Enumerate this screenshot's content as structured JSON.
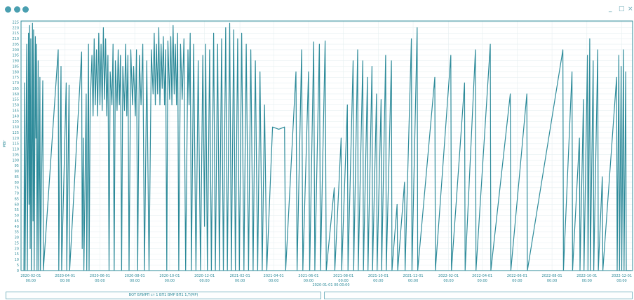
{
  "window": {
    "icons": [
      "shield-icon",
      "gear-icon",
      "gear-icon"
    ],
    "controls": [
      "_",
      "□",
      "×"
    ]
  },
  "status": {
    "left_text": "ВОТ ВЛИРП ст 1 ВП1 ВМР ВП1 1,Т(МР)",
    "right_text": ""
  },
  "chart_data": {
    "type": "line",
    "title": "",
    "xlabel": "2020-01-01 00:00:00",
    "ylabel": "МВт",
    "ylim": [
      0,
      226
    ],
    "xlim": [
      "2020-01-15",
      "2022-12-20"
    ],
    "grid": true,
    "color": "#2e8b9a",
    "x_ticks": [
      {
        "date": "2020-02-01",
        "label": "2020-02-01",
        "sub": "00:00"
      },
      {
        "date": "2020-04-01",
        "label": "2020-04-01",
        "sub": "00:00"
      },
      {
        "date": "2020-06-01",
        "label": "2020-06-01",
        "sub": "00:00"
      },
      {
        "date": "2020-08-01",
        "label": "2020-08-01",
        "sub": "00:00"
      },
      {
        "date": "2020-10-01",
        "label": "2020-10-01",
        "sub": "00:00"
      },
      {
        "date": "2020-12-01",
        "label": "2020-12-01",
        "sub": "00:00"
      },
      {
        "date": "2021-02-01",
        "label": "2021-02-01",
        "sub": "00:00"
      },
      {
        "date": "2021-04-01",
        "label": "2021-04-01",
        "sub": "00:00"
      },
      {
        "date": "2021-06-01",
        "label": "2021-06-01",
        "sub": "00:00"
      },
      {
        "date": "2021-08-01",
        "label": "2021-08-01",
        "sub": "00:00"
      },
      {
        "date": "2021-10-01",
        "label": "2021-10-01",
        "sub": "00:00"
      },
      {
        "date": "2021-12-01",
        "label": "2021-12-01",
        "sub": "00:00"
      },
      {
        "date": "2022-02-01",
        "label": "2022-02-01",
        "sub": "00:00"
      },
      {
        "date": "2022-04-01",
        "label": "2022-04-01",
        "sub": "00:00"
      },
      {
        "date": "2022-06-01",
        "label": "2022-06-01",
        "sub": "00:00"
      },
      {
        "date": "2022-08-01",
        "label": "2022-08-01",
        "sub": "00:00"
      },
      {
        "date": "2022-10-01",
        "label": "2022-10-01",
        "sub": "00:00"
      },
      {
        "date": "2022-12-01",
        "label": "2022-12-01",
        "sub": "00:00"
      }
    ],
    "y_ticks": [
      0,
      5,
      10,
      15,
      20,
      25,
      30,
      35,
      40,
      45,
      50,
      55,
      60,
      65,
      70,
      75,
      80,
      85,
      90,
      95,
      100,
      105,
      110,
      115,
      120,
      125,
      130,
      135,
      140,
      145,
      150,
      155,
      160,
      165,
      170,
      175,
      180,
      185,
      190,
      195,
      200,
      205,
      210,
      215,
      220,
      225
    ],
    "series": [
      {
        "values": [
          [
            "2020-01-20",
            0
          ],
          [
            "2020-01-21",
            170
          ],
          [
            "2020-01-22",
            0
          ],
          [
            "2020-01-25",
            205
          ],
          [
            "2020-01-26",
            0
          ],
          [
            "2020-01-28",
            215
          ],
          [
            "2020-01-29",
            60
          ],
          [
            "2020-01-30",
            222
          ],
          [
            "2020-01-31",
            20
          ],
          [
            "2020-02-01",
            210
          ],
          [
            "2020-02-02",
            0
          ],
          [
            "2020-02-04",
            224
          ],
          [
            "2020-02-05",
            45
          ],
          [
            "2020-02-06",
            218
          ],
          [
            "2020-02-07",
            0
          ],
          [
            "2020-02-09",
            212
          ],
          [
            "2020-02-10",
            120
          ],
          [
            "2020-02-11",
            205
          ],
          [
            "2020-02-12",
            0
          ],
          [
            "2020-02-14",
            190
          ],
          [
            "2020-02-15",
            0
          ],
          [
            "2020-02-17",
            175
          ],
          [
            "2020-02-18",
            0
          ],
          [
            "2020-02-22",
            172
          ],
          [
            "2020-02-23",
            0
          ],
          [
            "2020-03-20",
            200
          ],
          [
            "2020-03-21",
            0
          ],
          [
            "2020-03-25",
            185
          ],
          [
            "2020-03-26",
            0
          ],
          [
            "2020-04-03",
            170
          ],
          [
            "2020-04-04",
            0
          ],
          [
            "2020-04-08",
            168
          ],
          [
            "2020-04-09",
            0
          ],
          [
            "2020-04-30",
            198
          ],
          [
            "2020-05-01",
            20
          ],
          [
            "2020-05-03",
            120
          ],
          [
            "2020-05-04",
            0
          ],
          [
            "2020-05-08",
            160
          ],
          [
            "2020-05-09",
            0
          ],
          [
            "2020-05-12",
            205
          ],
          [
            "2020-05-13",
            0
          ],
          [
            "2020-05-15",
            150
          ],
          [
            "2020-05-18",
            195
          ],
          [
            "2020-05-20",
            140
          ],
          [
            "2020-05-22",
            210
          ],
          [
            "2020-05-24",
            150
          ],
          [
            "2020-05-26",
            200
          ],
          [
            "2020-05-28",
            140
          ],
          [
            "2020-05-30",
            215
          ],
          [
            "2020-06-01",
            150
          ],
          [
            "2020-06-03",
            205
          ],
          [
            "2020-06-05",
            145
          ],
          [
            "2020-06-07",
            220
          ],
          [
            "2020-06-09",
            155
          ],
          [
            "2020-06-11",
            210
          ],
          [
            "2020-06-13",
            140
          ],
          [
            "2020-06-15",
            195
          ],
          [
            "2020-06-17",
            0
          ],
          [
            "2020-06-19",
            180
          ],
          [
            "2020-06-22",
            150
          ],
          [
            "2020-06-24",
            205
          ],
          [
            "2020-06-26",
            0
          ],
          [
            "2020-06-28",
            190
          ],
          [
            "2020-07-01",
            145
          ],
          [
            "2020-07-03",
            200
          ],
          [
            "2020-07-05",
            150
          ],
          [
            "2020-07-07",
            195
          ],
          [
            "2020-07-09",
            0
          ],
          [
            "2020-07-11",
            185
          ],
          [
            "2020-07-14",
            145
          ],
          [
            "2020-07-16",
            205
          ],
          [
            "2020-07-18",
            140
          ],
          [
            "2020-07-20",
            195
          ],
          [
            "2020-07-22",
            0
          ],
          [
            "2020-07-25",
            200
          ],
          [
            "2020-07-28",
            150
          ],
          [
            "2020-07-30",
            185
          ],
          [
            "2020-08-02",
            140
          ],
          [
            "2020-08-04",
            200
          ],
          [
            "2020-08-06",
            0
          ],
          [
            "2020-08-09",
            195
          ],
          [
            "2020-08-12",
            150
          ],
          [
            "2020-08-15",
            205
          ],
          [
            "2020-08-18",
            0
          ],
          [
            "2020-08-22",
            190
          ],
          [
            "2020-08-26",
            0
          ],
          [
            "2020-08-30",
            200
          ],
          [
            "2020-09-02",
            160
          ],
          [
            "2020-09-04",
            215
          ],
          [
            "2020-09-06",
            150
          ],
          [
            "2020-09-08",
            205
          ],
          [
            "2020-09-10",
            160
          ],
          [
            "2020-09-12",
            220
          ],
          [
            "2020-09-14",
            150
          ],
          [
            "2020-09-16",
            205
          ],
          [
            "2020-09-18",
            165
          ],
          [
            "2020-09-20",
            212
          ],
          [
            "2020-09-22",
            150
          ],
          [
            "2020-09-24",
            200
          ],
          [
            "2020-09-26",
            0
          ],
          [
            "2020-09-28",
            208
          ],
          [
            "2020-10-01",
            155
          ],
          [
            "2020-10-03",
            212
          ],
          [
            "2020-10-05",
            150
          ],
          [
            "2020-10-07",
            222
          ],
          [
            "2020-10-09",
            160
          ],
          [
            "2020-10-11",
            205
          ],
          [
            "2020-10-13",
            150
          ],
          [
            "2020-10-15",
            215
          ],
          [
            "2020-10-17",
            0
          ],
          [
            "2020-10-20",
            205
          ],
          [
            "2020-10-23",
            155
          ],
          [
            "2020-10-26",
            210
          ],
          [
            "2020-10-29",
            0
          ],
          [
            "2020-11-02",
            200
          ],
          [
            "2020-11-04",
            150
          ],
          [
            "2020-11-06",
            215
          ],
          [
            "2020-11-08",
            0
          ],
          [
            "2020-11-12",
            205
          ],
          [
            "2020-11-16",
            0
          ],
          [
            "2020-11-20",
            190
          ],
          [
            "2020-11-24",
            0
          ],
          [
            "2020-11-28",
            195
          ],
          [
            "2020-12-01",
            40
          ],
          [
            "2020-12-03",
            205
          ],
          [
            "2020-12-06",
            0
          ],
          [
            "2020-12-10",
            200
          ],
          [
            "2020-12-13",
            0
          ],
          [
            "2020-12-17",
            215
          ],
          [
            "2020-12-20",
            0
          ],
          [
            "2020-12-24",
            205
          ],
          [
            "2020-12-27",
            0
          ],
          [
            "2020-12-31",
            210
          ],
          [
            "2021-01-03",
            0
          ],
          [
            "2021-01-07",
            220
          ],
          [
            "2021-01-10",
            0
          ],
          [
            "2021-01-14",
            224
          ],
          [
            "2021-01-17",
            0
          ],
          [
            "2021-01-21",
            218
          ],
          [
            "2021-01-24",
            0
          ],
          [
            "2021-01-28",
            210
          ],
          [
            "2021-01-31",
            0
          ],
          [
            "2021-02-04",
            215
          ],
          [
            "2021-02-08",
            0
          ],
          [
            "2021-02-12",
            205
          ],
          [
            "2021-02-16",
            0
          ],
          [
            "2021-02-20",
            200
          ],
          [
            "2021-02-24",
            0
          ],
          [
            "2021-02-28",
            190
          ],
          [
            "2021-03-04",
            0
          ],
          [
            "2021-03-08",
            180
          ],
          [
            "2021-03-12",
            0
          ],
          [
            "2021-03-16",
            150
          ],
          [
            "2021-03-20",
            0
          ],
          [
            "2021-03-30",
            130
          ],
          [
            "2021-04-10",
            128
          ],
          [
            "2021-04-20",
            130
          ],
          [
            "2021-04-22",
            0
          ],
          [
            "2021-05-10",
            180
          ],
          [
            "2021-05-12",
            0
          ],
          [
            "2021-05-20",
            200
          ],
          [
            "2021-05-22",
            0
          ],
          [
            "2021-06-01",
            180
          ],
          [
            "2021-06-03",
            0
          ],
          [
            "2021-06-10",
            207
          ],
          [
            "2021-06-12",
            0
          ],
          [
            "2021-06-20",
            205
          ],
          [
            "2021-06-22",
            0
          ],
          [
            "2021-06-30",
            208
          ],
          [
            "2021-07-02",
            0
          ],
          [
            "2021-07-16",
            75
          ],
          [
            "2021-07-17",
            0
          ],
          [
            "2021-07-28",
            120
          ],
          [
            "2021-07-29",
            0
          ],
          [
            "2021-08-08",
            150
          ],
          [
            "2021-08-09",
            0
          ],
          [
            "2021-08-18",
            190
          ],
          [
            "2021-08-19",
            0
          ],
          [
            "2021-08-26",
            200
          ],
          [
            "2021-08-27",
            0
          ],
          [
            "2021-09-04",
            190
          ],
          [
            "2021-09-05",
            0
          ],
          [
            "2021-09-12",
            175
          ],
          [
            "2021-09-13",
            0
          ],
          [
            "2021-09-20",
            185
          ],
          [
            "2021-09-21",
            0
          ],
          [
            "2021-09-28",
            160
          ],
          [
            "2021-09-29",
            0
          ],
          [
            "2021-10-06",
            155
          ],
          [
            "2021-10-07",
            0
          ],
          [
            "2021-10-14",
            195
          ],
          [
            "2021-10-15",
            0
          ],
          [
            "2021-10-24",
            190
          ],
          [
            "2021-10-25",
            0
          ],
          [
            "2021-11-03",
            60
          ],
          [
            "2021-11-04",
            0
          ],
          [
            "2021-11-16",
            80
          ],
          [
            "2021-11-17",
            0
          ],
          [
            "2021-11-28",
            210
          ],
          [
            "2021-11-29",
            0
          ],
          [
            "2021-12-08",
            220
          ],
          [
            "2021-12-09",
            0
          ],
          [
            "2022-01-08",
            175
          ],
          [
            "2022-01-09",
            0
          ],
          [
            "2022-02-05",
            195
          ],
          [
            "2022-02-06",
            0
          ],
          [
            "2022-03-01",
            170
          ],
          [
            "2022-03-02",
            0
          ],
          [
            "2022-03-20",
            200
          ],
          [
            "2022-03-21",
            0
          ],
          [
            "2022-04-15",
            205
          ],
          [
            "2022-04-16",
            0
          ],
          [
            "2022-05-20",
            160
          ],
          [
            "2022-05-21",
            0
          ],
          [
            "2022-06-18",
            160
          ],
          [
            "2022-06-19",
            0
          ],
          [
            "2022-08-20",
            200
          ],
          [
            "2022-08-21",
            0
          ],
          [
            "2022-09-05",
            180
          ],
          [
            "2022-09-06",
            0
          ],
          [
            "2022-09-18",
            120
          ],
          [
            "2022-09-19",
            0
          ],
          [
            "2022-09-25",
            155
          ],
          [
            "2022-09-26",
            0
          ],
          [
            "2022-10-02",
            195
          ],
          [
            "2022-10-03",
            0
          ],
          [
            "2022-10-06",
            210
          ],
          [
            "2022-10-07",
            0
          ],
          [
            "2022-10-12",
            190
          ],
          [
            "2022-10-13",
            0
          ],
          [
            "2022-10-20",
            200
          ],
          [
            "2022-10-21",
            0
          ],
          [
            "2022-10-28",
            85
          ],
          [
            "2022-10-29",
            0
          ],
          [
            "2022-11-22",
            175
          ],
          [
            "2022-11-23",
            0
          ],
          [
            "2022-11-26",
            195
          ],
          [
            "2022-11-27",
            0
          ],
          [
            "2022-11-30",
            185
          ],
          [
            "2022-12-01",
            0
          ],
          [
            "2022-12-04",
            200
          ],
          [
            "2022-12-05",
            0
          ],
          [
            "2022-12-08",
            180
          ],
          [
            "2022-12-09",
            0
          ],
          [
            "2022-12-18",
            0
          ]
        ]
      }
    ]
  }
}
